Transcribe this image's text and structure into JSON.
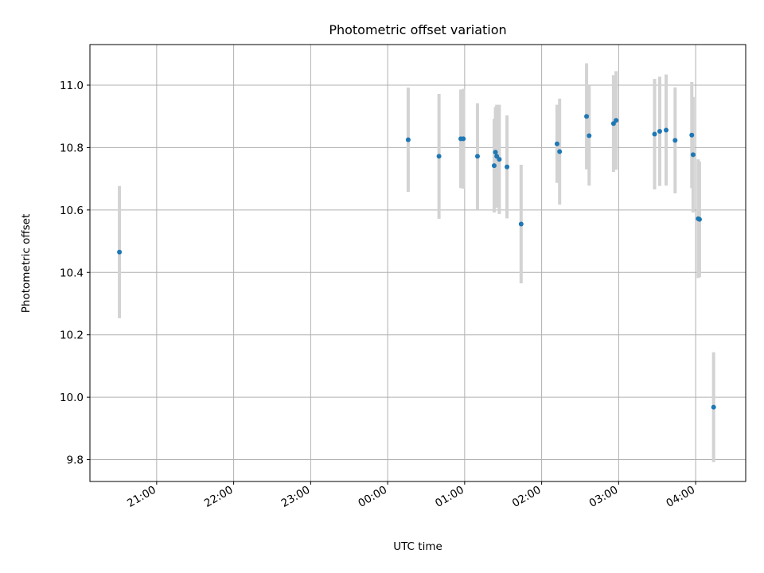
{
  "chart_data": {
    "type": "scatter",
    "title": "Photometric offset variation",
    "xlabel": "UTC time",
    "ylabel": "Photometric offset",
    "x_tick_labels": [
      "21:00",
      "22:00",
      "23:00",
      "00:00",
      "01:00",
      "02:00",
      "03:00",
      "04:00"
    ],
    "y_ticks": [
      9.8,
      10.0,
      10.2,
      10.4,
      10.6,
      10.8,
      11.0
    ],
    "y_tick_labels": [
      "9.8",
      "10.0",
      "10.2",
      "10.4",
      "10.6",
      "10.8",
      "11.0"
    ],
    "xlim": [
      "20:08",
      "04:39"
    ],
    "ylim": [
      9.73,
      11.13
    ],
    "grid": true,
    "colors": {
      "point": "#1f77b4",
      "errorbar": "#d3d3d3",
      "grid": "#b0b0b0"
    },
    "points": [
      {
        "x": "20:31",
        "y": 10.465,
        "yerr": 0.212
      },
      {
        "x": "00:16",
        "y": 10.825,
        "yerr": 0.167
      },
      {
        "x": "00:40",
        "y": 10.772,
        "yerr": 0.2
      },
      {
        "x": "00:57",
        "y": 10.828,
        "yerr": 0.158
      },
      {
        "x": "00:59",
        "y": 10.828,
        "yerr": 0.16
      },
      {
        "x": "01:10",
        "y": 10.772,
        "yerr": 0.17
      },
      {
        "x": "01:23",
        "y": 10.742,
        "yerr": 0.15
      },
      {
        "x": "01:24",
        "y": 10.785,
        "yerr": 0.145
      },
      {
        "x": "01:25",
        "y": 10.772,
        "yerr": 0.165
      },
      {
        "x": "01:27",
        "y": 10.762,
        "yerr": 0.175
      },
      {
        "x": "01:33",
        "y": 10.738,
        "yerr": 0.165
      },
      {
        "x": "01:44",
        "y": 10.555,
        "yerr": 0.19
      },
      {
        "x": "02:12",
        "y": 10.812,
        "yerr": 0.125
      },
      {
        "x": "02:14",
        "y": 10.787,
        "yerr": 0.17
      },
      {
        "x": "02:35",
        "y": 10.9,
        "yerr": 0.17
      },
      {
        "x": "02:37",
        "y": 10.838,
        "yerr": 0.16
      },
      {
        "x": "02:56",
        "y": 10.877,
        "yerr": 0.155
      },
      {
        "x": "02:58",
        "y": 10.887,
        "yerr": 0.158
      },
      {
        "x": "03:28",
        "y": 10.843,
        "yerr": 0.177
      },
      {
        "x": "03:32",
        "y": 10.852,
        "yerr": 0.175
      },
      {
        "x": "03:37",
        "y": 10.856,
        "yerr": 0.178
      },
      {
        "x": "03:44",
        "y": 10.823,
        "yerr": 0.17
      },
      {
        "x": "03:57",
        "y": 10.84,
        "yerr": 0.17
      },
      {
        "x": "03:58",
        "y": 10.777,
        "yerr": 0.185
      },
      {
        "x": "04:02",
        "y": 10.572,
        "yerr": 0.19
      },
      {
        "x": "04:03",
        "y": 10.57,
        "yerr": 0.185
      },
      {
        "x": "04:14",
        "y": 9.968,
        "yerr": 0.176
      }
    ]
  }
}
